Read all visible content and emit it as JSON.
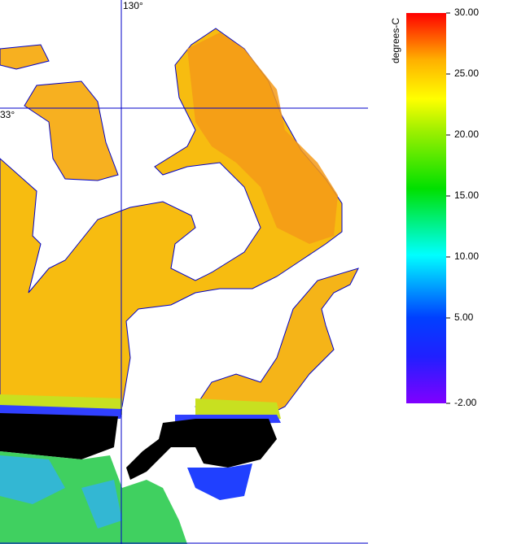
{
  "map": {
    "longitude_label": "130°",
    "latitude_label": "33°",
    "colorbar": {
      "title": "degrees-C",
      "lim": [
        -2,
        30
      ],
      "ticks": [
        {
          "value": 30,
          "label": "30.00"
        },
        {
          "value": 25,
          "label": "25.00"
        },
        {
          "value": 20,
          "label": "20.00"
        },
        {
          "value": 15,
          "label": "15.00"
        },
        {
          "value": 10,
          "label": "10.00"
        },
        {
          "value": 5,
          "label": "5.00"
        },
        {
          "value": -2,
          "label": "-2.00"
        }
      ]
    }
  }
}
